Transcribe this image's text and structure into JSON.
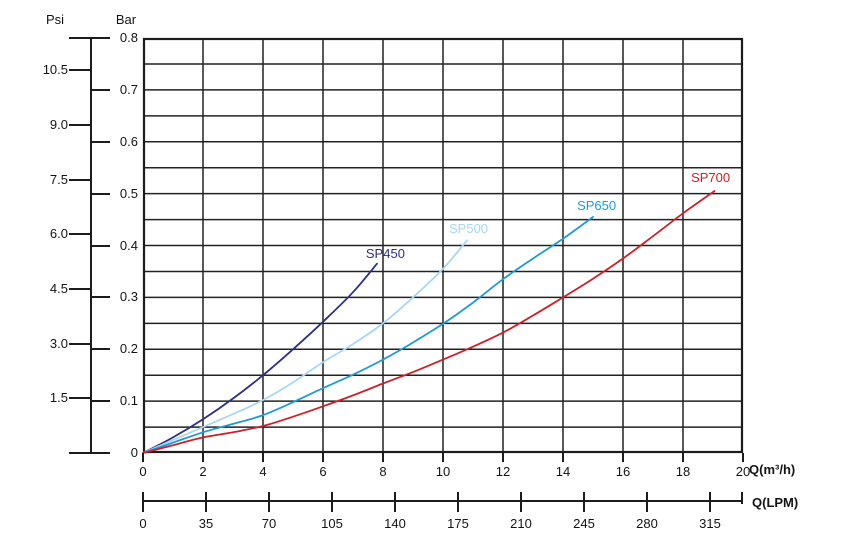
{
  "axes": {
    "psi_header": "Psi",
    "bar_header": "Bar",
    "bar_ticks": [
      "0.8",
      "0.7",
      "0.6",
      "0.5",
      "0.4",
      "0.3",
      "0.2",
      "0.1",
      "0"
    ],
    "psi_ticks": [
      "10.5",
      "9.0",
      "7.5",
      "6.0",
      "4.5",
      "3.0",
      "1.5"
    ],
    "x_ticks": [
      "0",
      "2",
      "4",
      "6",
      "8",
      "10",
      "12",
      "14",
      "16",
      "18",
      "20"
    ],
    "x_title": "Q(m³/h)",
    "lpm_ticks": [
      "0",
      "35",
      "70",
      "105",
      "140",
      "175",
      "210",
      "245",
      "280",
      "315"
    ],
    "lpm_title": "Q(LPM)"
  },
  "chart_data": {
    "type": "line",
    "title": "",
    "xlabel": "Q(m³/h)",
    "xlabel_secondary": "Q(LPM)",
    "ylabel": "Bar",
    "ylabel_secondary": "Psi",
    "xlim": [
      0,
      20
    ],
    "ylim": [
      0,
      0.8
    ],
    "x_tick_step": 2,
    "y_grid_step": 0.05,
    "lpm_per_m3h": 16.667,
    "grid": true,
    "legend_position": "inline-labels-at-curve-ends",
    "series": [
      {
        "name": "SP450",
        "color": "#2e2e85",
        "points": [
          [
            0,
            0
          ],
          [
            1,
            0.03
          ],
          [
            2,
            0.065
          ],
          [
            3,
            0.105
          ],
          [
            4,
            0.15
          ],
          [
            5,
            0.2
          ],
          [
            6,
            0.253
          ],
          [
            7,
            0.31
          ],
          [
            7.8,
            0.365
          ]
        ],
        "label_at": [
          7.43,
          0.397
        ]
      },
      {
        "name": "SP500",
        "color": "#a9d7f2",
        "points": [
          [
            0,
            0
          ],
          [
            1,
            0.025
          ],
          [
            2,
            0.05
          ],
          [
            3,
            0.075
          ],
          [
            4,
            0.102
          ],
          [
            5,
            0.136
          ],
          [
            6,
            0.175
          ],
          [
            7,
            0.21
          ],
          [
            8,
            0.25
          ],
          [
            9,
            0.3
          ],
          [
            10,
            0.355
          ],
          [
            10.8,
            0.41
          ]
        ],
        "label_at": [
          10.2,
          0.445
        ]
      },
      {
        "name": "SP650",
        "color": "#1d9bd8",
        "points": [
          [
            0,
            0
          ],
          [
            1,
            0.02
          ],
          [
            2,
            0.04
          ],
          [
            3,
            0.056
          ],
          [
            4,
            0.073
          ],
          [
            5,
            0.098
          ],
          [
            6,
            0.125
          ],
          [
            7,
            0.151
          ],
          [
            8,
            0.18
          ],
          [
            9,
            0.213
          ],
          [
            10,
            0.249
          ],
          [
            11,
            0.29
          ],
          [
            12,
            0.335
          ],
          [
            13,
            0.375
          ],
          [
            14,
            0.413
          ],
          [
            15,
            0.455
          ]
        ],
        "label_at": [
          14.47,
          0.49
        ]
      },
      {
        "name": "SP700",
        "color": "#cf2028",
        "points": [
          [
            0,
            0
          ],
          [
            1,
            0.015
          ],
          [
            2,
            0.03
          ],
          [
            3,
            0.04
          ],
          [
            4,
            0.052
          ],
          [
            5,
            0.07
          ],
          [
            6,
            0.09
          ],
          [
            7,
            0.111
          ],
          [
            8,
            0.134
          ],
          [
            9,
            0.156
          ],
          [
            10,
            0.18
          ],
          [
            11,
            0.205
          ],
          [
            12,
            0.232
          ],
          [
            13,
            0.265
          ],
          [
            14,
            0.3
          ],
          [
            15,
            0.336
          ],
          [
            16,
            0.375
          ],
          [
            17,
            0.418
          ],
          [
            18,
            0.462
          ],
          [
            19.05,
            0.505
          ]
        ],
        "label_at": [
          18.27,
          0.544
        ]
      }
    ]
  }
}
